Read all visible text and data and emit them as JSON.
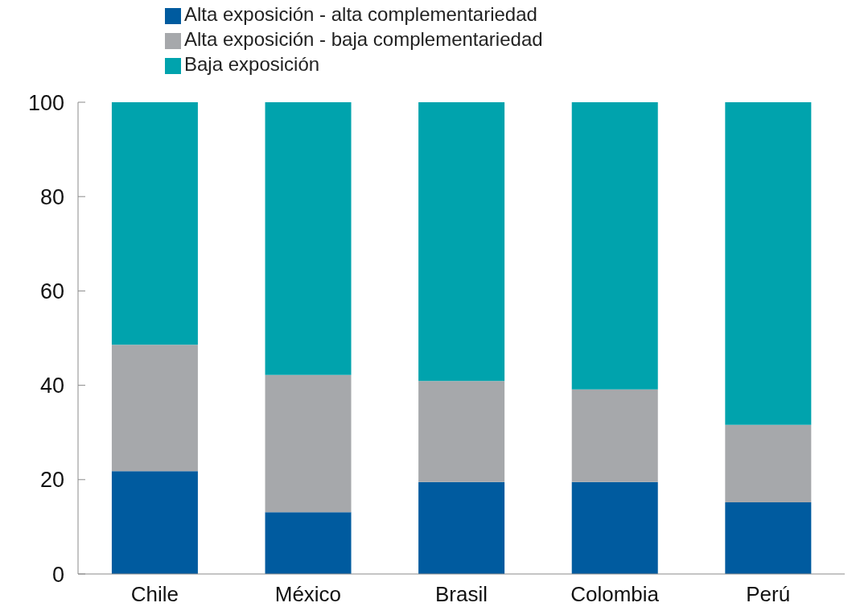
{
  "chart_data": {
    "type": "bar",
    "stacked": true,
    "categories": [
      "Chile",
      "México",
      "Brasil",
      "Colombia",
      "Perú"
    ],
    "series": [
      {
        "name": "Alta exposición - alta complementariedad",
        "color": "#005b9f",
        "values": [
          21.8,
          13.1,
          19.5,
          19.5,
          15.2
        ]
      },
      {
        "name": "Alta exposición - baja complementariedad",
        "color": "#a6a8ab",
        "values": [
          26.8,
          29.1,
          21.4,
          19.6,
          16.4
        ]
      },
      {
        "name": "Baja exposición",
        "color": "#00a3ad",
        "values": [
          51.4,
          57.8,
          59.1,
          60.9,
          68.4
        ]
      }
    ],
    "ylim": [
      0,
      100
    ],
    "yticks": [
      0,
      20,
      40,
      60,
      80,
      100
    ],
    "grid": false,
    "legend": "top"
  }
}
